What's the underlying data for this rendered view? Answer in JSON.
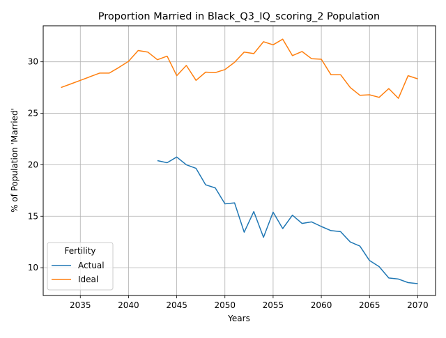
{
  "chart_data": {
    "type": "line",
    "title": "Proportion Married in Black_Q3_IQ_scoring_2 Population",
    "xlabel": "Years",
    "ylabel": "% of Population 'Married'",
    "xlim": [
      2031.15,
      2071.85
    ],
    "ylim": [
      7.3,
      33.5
    ],
    "xticks": [
      2035,
      2040,
      2045,
      2050,
      2055,
      2060,
      2065,
      2070
    ],
    "yticks": [
      10,
      15,
      20,
      25,
      30
    ],
    "grid": true,
    "legend": {
      "title": "Fertility",
      "placement": "lower-left",
      "entries": [
        "Actual",
        "Ideal"
      ]
    },
    "series": [
      {
        "name": "Actual",
        "color": "#1f77b4",
        "x": [
          2043,
          2044,
          2045,
          2046,
          2047,
          2048,
          2049,
          2050,
          2051,
          2052,
          2053,
          2054,
          2055,
          2056,
          2057,
          2058,
          2059,
          2060,
          2061,
          2062,
          2063,
          2064,
          2065,
          2066,
          2067,
          2068,
          2069,
          2070
        ],
        "values": [
          20.4,
          20.2,
          20.75,
          20.0,
          19.65,
          18.05,
          17.75,
          16.2,
          16.3,
          13.45,
          15.45,
          12.95,
          15.4,
          13.8,
          15.1,
          14.3,
          14.45,
          14.0,
          13.6,
          13.5,
          12.5,
          12.1,
          10.7,
          10.1,
          9.0,
          8.9,
          8.55,
          8.45
        ]
      },
      {
        "name": "Ideal",
        "color": "#ff7f0e",
        "x": [
          2033,
          2034,
          2035,
          2036,
          2037,
          2038,
          2039,
          2040,
          2041,
          2042,
          2043,
          2044,
          2045,
          2046,
          2047,
          2048,
          2049,
          2050,
          2051,
          2052,
          2053,
          2054,
          2055,
          2056,
          2057,
          2058,
          2059,
          2060,
          2061,
          2062,
          2063,
          2064,
          2065,
          2066,
          2067,
          2068,
          2069,
          2070
        ],
        "values": [
          27.5,
          27.85,
          28.2,
          28.55,
          28.9,
          28.9,
          29.45,
          30.05,
          31.1,
          30.95,
          30.2,
          30.55,
          28.65,
          29.65,
          28.2,
          29.0,
          28.95,
          29.25,
          29.95,
          30.95,
          30.8,
          31.95,
          31.65,
          32.2,
          30.6,
          31.0,
          30.3,
          30.25,
          28.75,
          28.75,
          27.5,
          26.75,
          26.8,
          26.55,
          27.4,
          26.45,
          28.65,
          28.35
        ]
      }
    ]
  }
}
